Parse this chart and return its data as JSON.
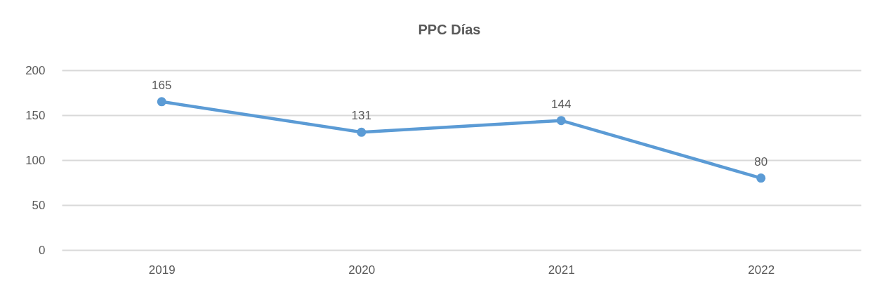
{
  "chart_data": {
    "type": "line",
    "title": "PPC Días",
    "categories": [
      "2019",
      "2020",
      "2021",
      "2022"
    ],
    "series": [
      {
        "color": "#5b9bd5",
        "values": [
          165,
          131,
          144,
          80
        ]
      }
    ],
    "ylim": [
      0,
      200
    ],
    "yticks": [
      0,
      50,
      100,
      150,
      200
    ],
    "grid": "y",
    "data_labels": true,
    "marker": "circle",
    "line_style": "solid"
  }
}
